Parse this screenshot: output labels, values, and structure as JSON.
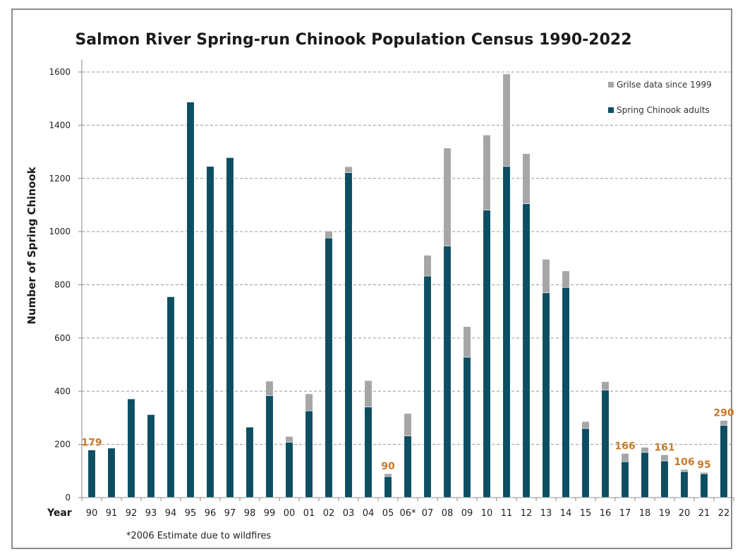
{
  "chart_data": {
    "type": "bar",
    "stacked": true,
    "title": "Salmon River Spring-run Chinook Population Census 1990-2022",
    "xlabel": "Year",
    "ylabel": "Number of Spring Chinook",
    "ylim": [
      0,
      1600
    ],
    "yticks": [
      0,
      200,
      400,
      600,
      800,
      1000,
      1200,
      1400,
      1600
    ],
    "grid": true,
    "legend_position": "top-right",
    "categories": [
      "90",
      "91",
      "92",
      "93",
      "94",
      "95",
      "96",
      "97",
      "98",
      "99",
      "00",
      "01",
      "02",
      "03",
      "04",
      "05",
      "06*",
      "07",
      "08",
      "09",
      "10",
      "11",
      "12",
      "13",
      "14",
      "15",
      "16",
      "17",
      "18",
      "19",
      "20",
      "21",
      "22"
    ],
    "series": [
      {
        "name": "Spring Chinook adults",
        "color": "#0d4e63",
        "values": [
          179,
          186,
          371,
          312,
          755,
          1487,
          1245,
          1278,
          265,
          383,
          208,
          326,
          976,
          1222,
          341,
          79,
          232,
          833,
          946,
          528,
          1081,
          1245,
          1105,
          770,
          790,
          260,
          404,
          135,
          170,
          138,
          98,
          90,
          272
        ]
      },
      {
        "name": "Grilse data since 1999",
        "color": "#a6a6a6",
        "values": [
          0,
          0,
          0,
          0,
          0,
          0,
          0,
          0,
          0,
          55,
          22,
          64,
          26,
          22,
          99,
          11,
          84,
          78,
          368,
          115,
          282,
          348,
          188,
          126,
          62,
          26,
          32,
          31,
          19,
          23,
          8,
          5,
          18
        ]
      }
    ],
    "legend": [
      {
        "label": "Grilse data since 1999",
        "color": "#a6a6a6"
      },
      {
        "label": "Spring Chinook adults",
        "color": "#0d4e63"
      }
    ],
    "annotations": [
      {
        "category": "90",
        "text": "179",
        "value": 179
      },
      {
        "category": "05",
        "text": "90",
        "value": 90
      },
      {
        "category": "17",
        "text": "166",
        "value": 166
      },
      {
        "category": "19",
        "text": "161",
        "value": 161
      },
      {
        "category": "20",
        "text": "106",
        "value": 106
      },
      {
        "category": "21",
        "text": "95",
        "value": 95
      },
      {
        "category": "22",
        "text": "290",
        "value": 290
      }
    ],
    "annotation_color": "#c97a2a",
    "footnote": "*2006 Estimate due to wildfires"
  }
}
